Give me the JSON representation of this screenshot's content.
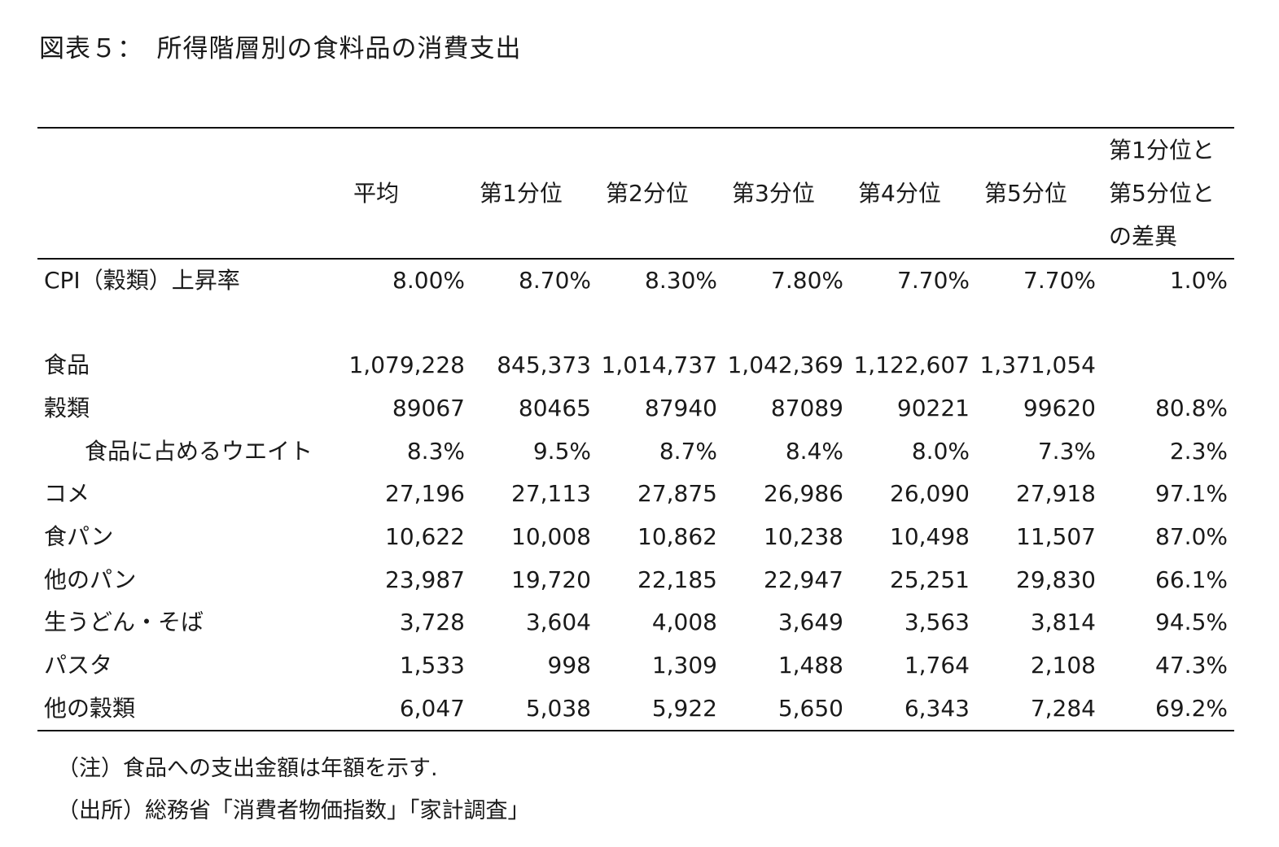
{
  "title": "図表５：　所得階層別の食料品の消費支出",
  "table": {
    "columns": [
      "平均",
      "第1分位",
      "第2分位",
      "第3分位",
      "第4分位",
      "第5分位"
    ],
    "diff_column": [
      "第1分位と",
      "第5分位と",
      "の差異"
    ],
    "rows": {
      "cpi": {
        "label": "CPI（穀類）上昇率",
        "values": [
          "8.00%",
          "8.70%",
          "8.30%",
          "7.80%",
          "7.70%",
          "7.70%"
        ],
        "diff": "1.0%"
      },
      "food": {
        "label": "食品",
        "values": [
          "1,079,228",
          "845,373",
          "1,014,737",
          "1,042,369",
          "1,122,607",
          "1,371,054"
        ],
        "diff": ""
      },
      "grains": {
        "label": "穀類",
        "values": [
          "89067",
          "80465",
          "87940",
          "87089",
          "90221",
          "99620"
        ],
        "diff": "80.8%"
      },
      "weight": {
        "label": "食品に占めるウエイト",
        "values": [
          "8.3%",
          "9.5%",
          "8.7%",
          "8.4%",
          "8.0%",
          "7.3%"
        ],
        "diff": "2.3%"
      },
      "rice": {
        "label": "コメ",
        "values": [
          "27,196",
          "27,113",
          "27,875",
          "26,986",
          "26,090",
          "27,918"
        ],
        "diff": "97.1%"
      },
      "bread": {
        "label": "食パン",
        "values": [
          "10,622",
          "10,008",
          "10,862",
          "10,238",
          "10,498",
          "11,507"
        ],
        "diff": "87.0%"
      },
      "other_bread": {
        "label": "他のパン",
        "values": [
          "23,987",
          "19,720",
          "22,185",
          "22,947",
          "25,251",
          "29,830"
        ],
        "diff": "66.1%"
      },
      "noodles": {
        "label": "生うどん・そば",
        "values": [
          "3,728",
          "3,604",
          "4,008",
          "3,649",
          "3,563",
          "3,814"
        ],
        "diff": "94.5%"
      },
      "pasta": {
        "label": "パスタ",
        "values": [
          "1,533",
          "998",
          "1,309",
          "1,488",
          "1,764",
          "2,108"
        ],
        "diff": "47.3%"
      },
      "other_grains": {
        "label": "他の穀類",
        "values": [
          "6,047",
          "5,038",
          "5,922",
          "5,650",
          "6,343",
          "7,284"
        ],
        "diff": "69.2%"
      }
    }
  },
  "notes": {
    "note": "（注）食品への支出金額は年額を示す.",
    "source": "（出所）総務省「消費者物価指数」「家計調査」"
  }
}
